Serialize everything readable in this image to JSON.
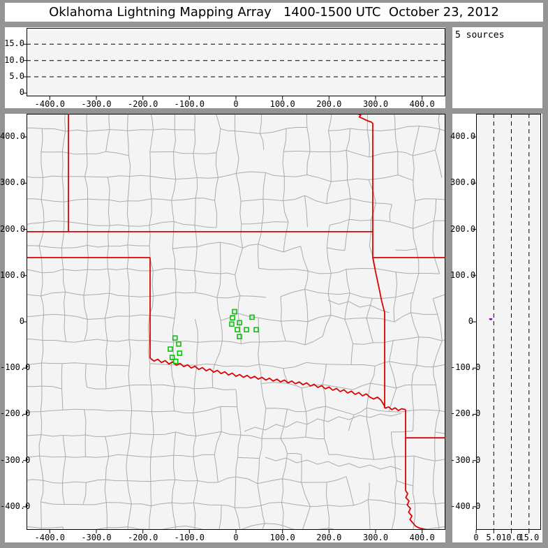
{
  "window": {
    "title": "Oklahoma Lightning Mapping Array   1400-1500 UTC  October 23, 2012"
  },
  "colors": {
    "frame": "#949494",
    "title_bg": "#ffffff",
    "panel_bg": "#f4f4f4",
    "sources_box_bg": "#ffffff",
    "county_line": "#ababab",
    "state_border": "#dd0000",
    "station_marker": "#00c800",
    "source_point": "#8800cc",
    "dashed_grid": "#000000",
    "axis_text": "#000000"
  },
  "chart_data": [
    {
      "id": "altitude_vs_east_west",
      "type": "scatter",
      "position": "top-left",
      "x_axis": {
        "range": [
          -450,
          450
        ],
        "tick_values": [
          -400,
          -300,
          -200,
          -100,
          0,
          100,
          200,
          300,
          400
        ],
        "tick_labels": [
          "-400.0",
          "-300.0",
          "-200.0",
          "-100.0",
          "0",
          "100.0",
          "200.0",
          "300.0",
          "400.0"
        ]
      },
      "y_axis": {
        "range": [
          -1,
          20
        ],
        "tick_values": [
          0,
          5,
          10,
          15
        ],
        "tick_labels": [
          "0",
          "5.0",
          "10.0",
          "15.0"
        ]
      },
      "dashed_gridlines_at": [
        5,
        10,
        15
      ],
      "points": []
    },
    {
      "id": "source_count_box",
      "type": "text",
      "position": "top-right",
      "label": "5 sources"
    },
    {
      "id": "plan_view_map",
      "type": "scatter",
      "position": "main",
      "x_axis": {
        "range": [
          -450,
          450
        ],
        "tick_values": [
          -400,
          -300,
          -200,
          -100,
          0,
          100,
          200,
          300,
          400
        ],
        "tick_labels": [
          "-400.0",
          "-300.0",
          "-200.0",
          "-100.0",
          "0",
          "100.0",
          "200.0",
          "300.0",
          "400.0"
        ]
      },
      "y_axis": {
        "range": [
          -450,
          450
        ],
        "tick_values": [
          400,
          300,
          200,
          100,
          0,
          -100,
          -200,
          -300,
          -400
        ],
        "tick_labels": [
          "400.0",
          "300.0",
          "200.0",
          "100.0",
          "0",
          "-100.0",
          "-200.0",
          "-300.0",
          "-400.0"
        ]
      },
      "stations_km": [
        [
          -3,
          22
        ],
        [
          -7.5,
          8.7
        ],
        [
          34.5,
          10
        ],
        [
          -9,
          -5
        ],
        [
          7.5,
          -2
        ],
        [
          3,
          -17
        ],
        [
          22.5,
          -17
        ],
        [
          43.5,
          -17
        ],
        [
          7.5,
          -32
        ],
        [
          -131,
          -35
        ],
        [
          -123,
          -48
        ],
        [
          -141,
          -59
        ],
        [
          -121,
          -68
        ],
        [
          -137,
          -77
        ],
        [
          -129.5,
          -85.5
        ]
      ],
      "state_borders_km": [
        {
          "name": "co-ks-border",
          "pts": [
            [
              -360,
              450
            ],
            [
              -360,
              195
            ]
          ]
        },
        {
          "name": "ks-ok-border",
          "pts": [
            [
              -450,
              195
            ],
            [
              294,
              195
            ]
          ]
        },
        {
          "name": "ok-tx-north-border",
          "pts": [
            [
              -450,
              139
            ],
            [
              -184.5,
              139
            ]
          ]
        },
        {
          "name": "ok-tx-100th-meridian",
          "pts": [
            [
              -184.5,
              139
            ],
            [
              -184.5,
              -78.5
            ]
          ]
        },
        {
          "name": "red-river-border",
          "pts": [
            [
              -184.5,
              -78.5
            ],
            [
              -176,
              -85
            ],
            [
              -168,
              -81
            ],
            [
              -160,
              -88
            ],
            [
              -152,
              -84
            ],
            [
              -144,
              -91
            ],
            [
              -136,
              -87
            ],
            [
              -128,
              -94
            ],
            [
              -120,
              -90
            ],
            [
              -112,
              -97
            ],
            [
              -104,
              -93
            ],
            [
              -96,
              -100
            ],
            [
              -88,
              -96
            ],
            [
              -80,
              -103
            ],
            [
              -72,
              -99
            ],
            [
              -64,
              -106
            ],
            [
              -56,
              -102
            ],
            [
              -48,
              -109
            ],
            [
              -40,
              -105
            ],
            [
              -32,
              -112
            ],
            [
              -24,
              -108
            ],
            [
              -16,
              -115
            ],
            [
              -8,
              -111
            ],
            [
              0,
              -118
            ],
            [
              8,
              -114
            ],
            [
              16,
              -120
            ],
            [
              24,
              -116
            ],
            [
              32,
              -122
            ],
            [
              40,
              -118
            ],
            [
              48,
              -124
            ],
            [
              56,
              -120
            ],
            [
              64,
              -126
            ],
            [
              72,
              -122
            ],
            [
              80,
              -128
            ],
            [
              88,
              -124
            ],
            [
              96,
              -130
            ],
            [
              104,
              -126
            ],
            [
              112,
              -132
            ],
            [
              120,
              -128
            ],
            [
              128,
              -134
            ],
            [
              136,
              -130
            ],
            [
              144,
              -136
            ],
            [
              152,
              -132
            ],
            [
              160,
              -139
            ],
            [
              168,
              -135
            ],
            [
              176,
              -142
            ],
            [
              184,
              -138
            ],
            [
              192,
              -145
            ],
            [
              200,
              -141
            ],
            [
              208,
              -148
            ],
            [
              216,
              -144
            ],
            [
              224,
              -151
            ],
            [
              232,
              -147
            ],
            [
              240,
              -154
            ],
            [
              248,
              -150
            ],
            [
              256,
              -157
            ],
            [
              264,
              -153
            ],
            [
              272,
              -160
            ],
            [
              280,
              -156
            ],
            [
              288,
              -163
            ],
            [
              296,
              -167
            ],
            [
              304,
              -163
            ],
            [
              312,
              -170
            ],
            [
              318,
              -180
            ],
            [
              321,
              -187
            ],
            [
              328,
              -184
            ],
            [
              335,
              -190
            ],
            [
              342,
              -186
            ],
            [
              349,
              -192
            ],
            [
              356,
              -188
            ],
            [
              364.5,
              -190
            ]
          ]
        },
        {
          "name": "ks-mo-border",
          "pts": [
            [
              262,
              450
            ],
            [
              268,
              447
            ],
            [
              265,
              443
            ],
            [
              272,
              440
            ],
            [
              278,
              437
            ],
            [
              285,
              434
            ],
            [
              291,
              432
            ],
            [
              294,
              429
            ],
            [
              294,
              139
            ]
          ]
        },
        {
          "name": "mo-ar-border",
          "pts": [
            [
              294,
              139
            ],
            [
              450,
              139
            ]
          ]
        },
        {
          "name": "ok-ar-border",
          "pts": [
            [
              294,
              139
            ],
            [
              300,
              108
            ],
            [
              307,
              75
            ],
            [
              313,
              45
            ],
            [
              319.5,
              20
            ],
            [
              319.5,
              -187
            ]
          ]
        },
        {
          "name": "ar-tx-la-border",
          "pts": [
            [
              364.5,
              -190
            ],
            [
              364.5,
              -365
            ],
            [
              369,
              -372
            ],
            [
              365,
              -380
            ],
            [
              372,
              -388
            ],
            [
              368,
              -396
            ],
            [
              375,
              -404
            ],
            [
              371,
              -412
            ],
            [
              378,
              -420
            ],
            [
              374,
              -428
            ],
            [
              381,
              -436
            ],
            [
              386,
              -442
            ],
            [
              394,
              -446
            ],
            [
              403,
              -448
            ],
            [
              412,
              -450
            ]
          ]
        },
        {
          "name": "ar-la-border",
          "pts": [
            [
              364.5,
              -251
            ],
            [
              450,
              -251
            ]
          ]
        }
      ]
    },
    {
      "id": "altitude_vs_north_south",
      "type": "scatter",
      "position": "right",
      "x_axis": {
        "range": [
          0,
          18.4
        ],
        "tick_values": [
          0,
          5,
          10,
          15
        ],
        "tick_labels": [
          "0",
          "5.0",
          "10.0",
          "15.0"
        ]
      },
      "y_axis": {
        "range": [
          -450,
          450
        ],
        "tick_values": [
          400,
          300,
          200,
          100,
          0,
          -100,
          -200,
          -300,
          -400
        ],
        "tick_labels": [
          "400.0",
          "300.0",
          "200.0",
          "100.0",
          "0",
          "-100.0",
          "-200.0",
          "-300.0",
          "-400.0"
        ]
      },
      "dashed_gridlines_at": [
        5,
        10,
        15
      ],
      "points_alt_ns": [
        [
          3.9,
          6
        ],
        [
          4.1,
          6
        ],
        [
          4.2,
          6
        ],
        [
          4.4,
          6
        ],
        [
          4.2,
          5
        ]
      ]
    }
  ]
}
